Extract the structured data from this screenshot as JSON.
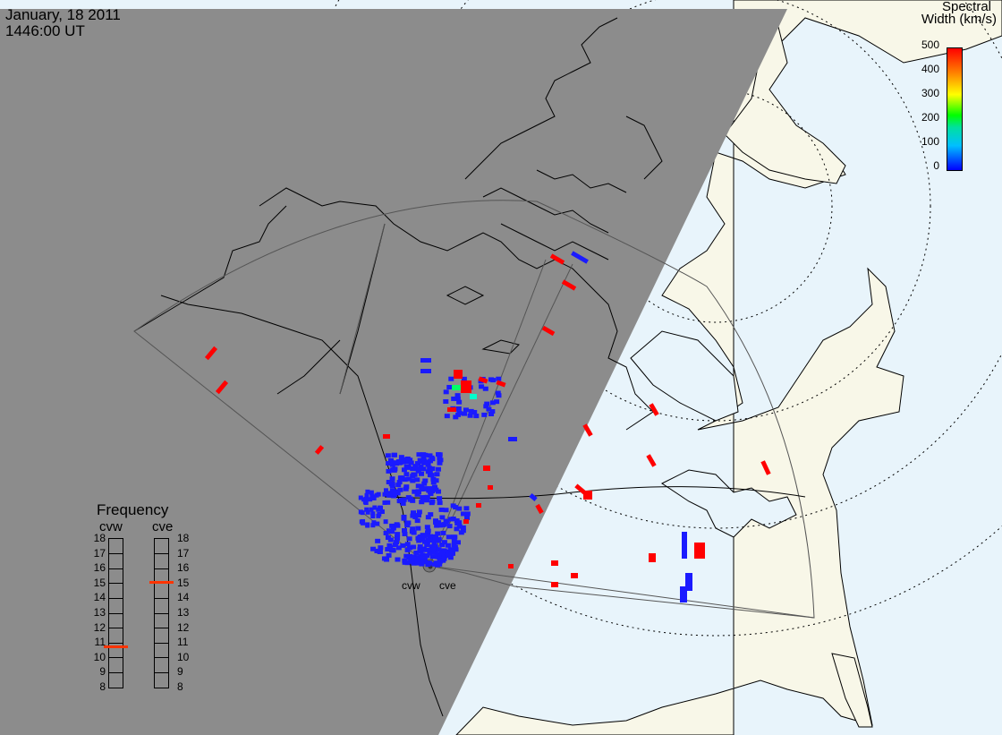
{
  "header": {
    "date": "January, 18 2011",
    "time": "1446:00 UT"
  },
  "colorbar": {
    "title_line1": "Spectral",
    "title_line2": "Width (km/s)",
    "ticks": [
      "500",
      "400",
      "300",
      "200",
      "100",
      "0"
    ],
    "colors": [
      "#0000ff",
      "#00bfff",
      "#00ff00",
      "#ffff00",
      "#ff8000",
      "#ff0000"
    ]
  },
  "frequency": {
    "title": "Frequency",
    "radar_left": "cvw",
    "radar_right": "cve",
    "ticks": [
      "18",
      "17",
      "16",
      "15",
      "14",
      "13",
      "12",
      "11",
      "10",
      "9",
      "8"
    ],
    "cvw_value": 10.8,
    "cve_value": 15.1,
    "indicator_color": "#ff3300"
  },
  "sites": {
    "left": "cvw",
    "right": "cve"
  },
  "colors": {
    "night": "#8c8c8c",
    "land_day": "#f8f7e8",
    "ocean_day": "#e8f4fb",
    "scatter_low": "#1a1aff",
    "scatter_high": "#ff0000"
  }
}
